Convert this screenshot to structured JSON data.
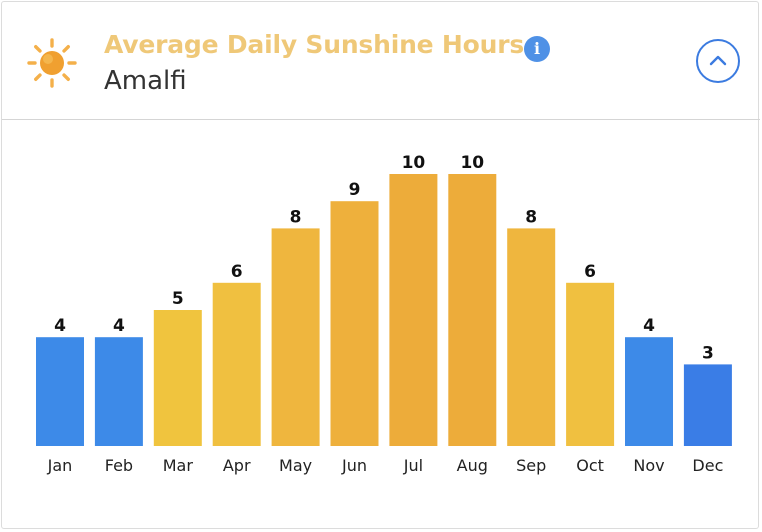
{
  "header": {
    "title": "Average Daily Sunshine Hours",
    "city": "Amalfi",
    "icons": {
      "sun": "sun-icon",
      "info": "info-icon",
      "collapse": "chevron-up-icon"
    },
    "info_glyph": "i"
  },
  "colors": {
    "title": "#efc878",
    "info": "#4f91e6",
    "toggle": "#3b7be0",
    "sun_core": "#f0a030",
    "sun_rays": "#f4b04a"
  },
  "chart_data": {
    "type": "bar",
    "title": "Average Daily Sunshine Hours",
    "xlabel": "",
    "ylabel": "",
    "ylim": [
      0,
      10
    ],
    "grid": false,
    "categories": [
      "Jan",
      "Feb",
      "Mar",
      "Apr",
      "May",
      "Jun",
      "Jul",
      "Aug",
      "Sep",
      "Oct",
      "Nov",
      "Dec"
    ],
    "values": [
      4,
      4,
      5,
      6,
      8,
      9,
      10,
      10,
      8,
      6,
      4,
      3
    ],
    "bar_colors": [
      "#3d8ae8",
      "#3d8ae8",
      "#f0c43e",
      "#f0c040",
      "#efb63e",
      "#eeb03c",
      "#edac3a",
      "#edac3a",
      "#efb63e",
      "#f0c040",
      "#3d8ae8",
      "#3a7de6"
    ]
  }
}
